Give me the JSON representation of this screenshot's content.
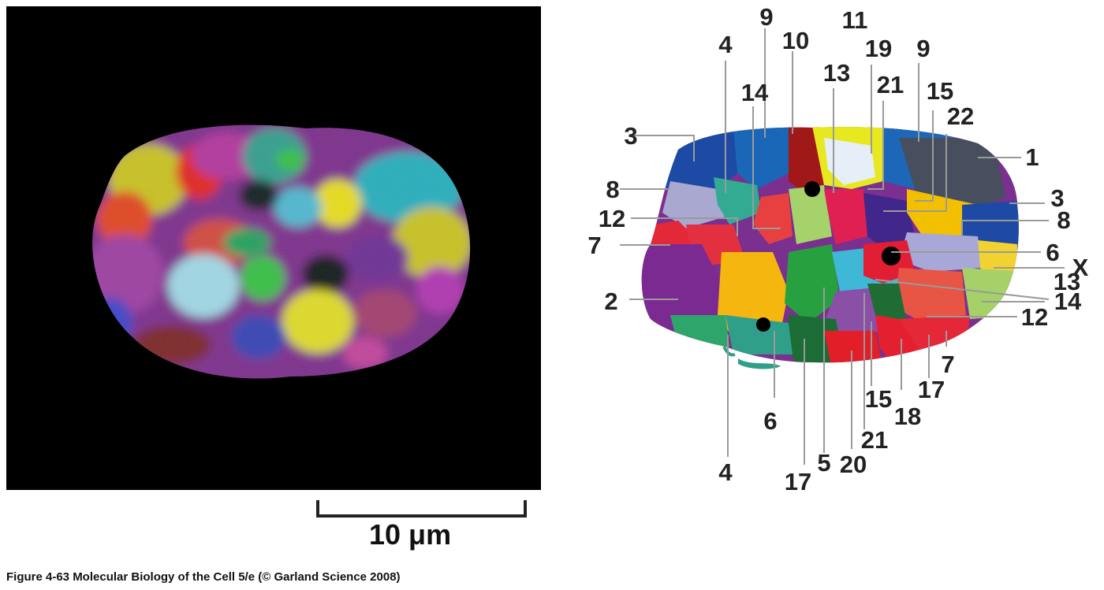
{
  "figure": {
    "caption": "Figure 4-63  Molecular Biology of the Cell 5/e (© Garland Science 2008)",
    "scale_bar_label": "10 μm"
  },
  "territory_map": {
    "labels": [
      "11",
      "9",
      "10",
      "19",
      "4",
      "21",
      "9",
      "13",
      "15",
      "14",
      "22",
      "3",
      "1",
      "8",
      "3",
      "12",
      "8",
      "7",
      "6",
      "X",
      "13",
      "2",
      "14",
      "12",
      "7",
      "17",
      "15",
      "18",
      "6",
      "21",
      "4",
      "17",
      "5",
      "20"
    ]
  }
}
